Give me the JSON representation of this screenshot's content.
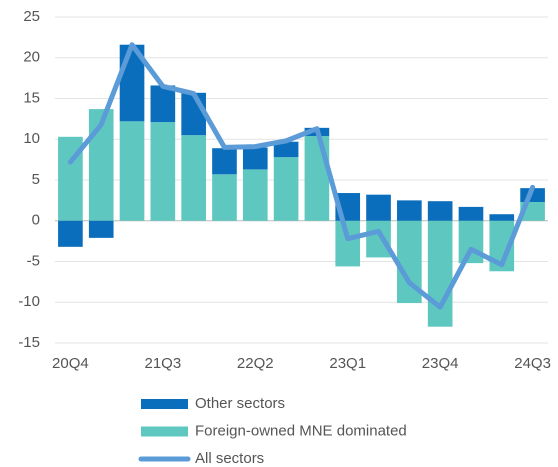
{
  "chart_data": {
    "type": "bar-line",
    "categories": [
      "20Q4",
      null,
      null,
      "21Q3",
      null,
      null,
      "22Q2",
      null,
      null,
      "23Q1",
      null,
      null,
      "23Q4",
      null,
      null,
      "24Q3"
    ],
    "series": [
      {
        "name": "Foreign-owned MNE dominated",
        "color": "#5ec8c0",
        "kind": "bar",
        "values": [
          10.3,
          13.7,
          12.2,
          12.1,
          10.5,
          5.7,
          6.3,
          7.8,
          10.4,
          -5.6,
          -4.5,
          -10.1,
          -13.0,
          -5.2,
          -6.2,
          2.3
        ]
      },
      {
        "name": "Other sectors",
        "color": "#0a6ebd",
        "kind": "bar",
        "values": [
          -3.2,
          -2.1,
          9.4,
          4.5,
          5.2,
          3.2,
          2.7,
          1.9,
          1.0,
          3.4,
          3.2,
          2.5,
          2.4,
          1.7,
          0.8,
          1.7
        ]
      },
      {
        "name": "All sectors",
        "color": "#5b9bd8",
        "kind": "line",
        "values": [
          7.2,
          11.8,
          21.6,
          16.5,
          15.6,
          9.0,
          9.1,
          9.8,
          11.3,
          -2.2,
          -1.3,
          -7.6,
          -10.6,
          -3.5,
          -5.4,
          4.1
        ]
      }
    ],
    "legend_order": [
      "Other sectors",
      "Foreign-owned MNE dominated",
      "All sectors"
    ],
    "ylim": [
      -15,
      25
    ],
    "yticks": [
      -15,
      -10,
      -5,
      0,
      5,
      10,
      15,
      20,
      25
    ],
    "grid": true
  }
}
